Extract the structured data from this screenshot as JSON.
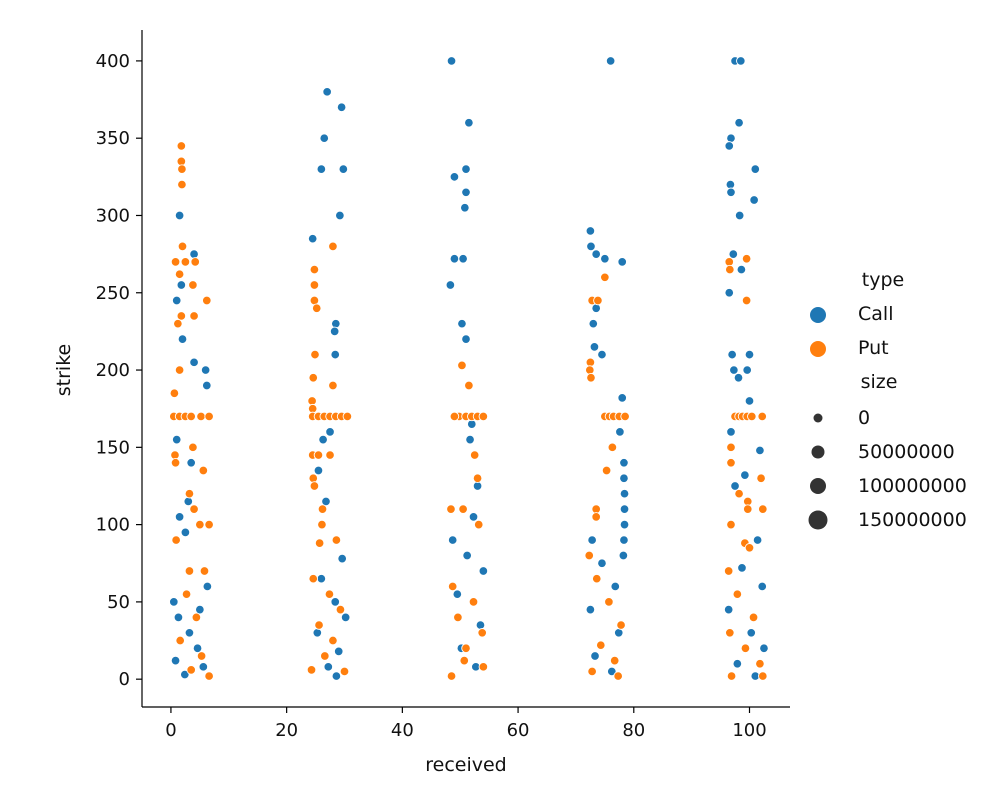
{
  "chart_data": {
    "type": "scatter",
    "xlabel": "received",
    "ylabel": "strike",
    "xlim": [
      -5,
      107
    ],
    "ylim": [
      -18,
      420
    ],
    "x_ticks": [
      0,
      20,
      40,
      60,
      80,
      100
    ],
    "y_ticks": [
      0,
      50,
      100,
      150,
      200,
      250,
      300,
      350,
      400
    ],
    "grid": false,
    "legend_position": "right",
    "legend": {
      "hue_title": "type",
      "hue_items": [
        {
          "label": "Call",
          "color": "#1f77b4"
        },
        {
          "label": "Put",
          "color": "#ff7f0e"
        }
      ],
      "size_title": "size",
      "size_items": [
        {
          "label": "0",
          "value": 0
        },
        {
          "label": "50000000",
          "value": 50000000
        },
        {
          "label": "100000000",
          "value": 100000000
        },
        {
          "label": "150000000",
          "value": 150000000
        }
      ]
    },
    "series": [
      {
        "name": "Call",
        "color": "#1f77b4",
        "points": [
          {
            "x": 1.5,
            "y": 300
          },
          {
            "x": 4,
            "y": 275
          },
          {
            "x": 1.8,
            "y": 255
          },
          {
            "x": 1,
            "y": 245
          },
          {
            "x": 2,
            "y": 220
          },
          {
            "x": 4,
            "y": 205
          },
          {
            "x": 6,
            "y": 200
          },
          {
            "x": 6.2,
            "y": 190
          },
          {
            "x": 1,
            "y": 155
          },
          {
            "x": 3.5,
            "y": 140
          },
          {
            "x": 3,
            "y": 115
          },
          {
            "x": 1.5,
            "y": 105
          },
          {
            "x": 2.5,
            "y": 95
          },
          {
            "x": 0.5,
            "y": 50
          },
          {
            "x": 1.3,
            "y": 40
          },
          {
            "x": 3.2,
            "y": 30
          },
          {
            "x": 4.6,
            "y": 20
          },
          {
            "x": 0.8,
            "y": 12
          },
          {
            "x": 5.6,
            "y": 8
          },
          {
            "x": 2.4,
            "y": 3
          },
          {
            "x": 6.3,
            "y": 60
          },
          {
            "x": 5,
            "y": 45
          },
          {
            "x": 27,
            "y": 380
          },
          {
            "x": 29.5,
            "y": 370
          },
          {
            "x": 26.5,
            "y": 350
          },
          {
            "x": 26,
            "y": 330
          },
          {
            "x": 29.8,
            "y": 330
          },
          {
            "x": 29.2,
            "y": 300
          },
          {
            "x": 24.5,
            "y": 285
          },
          {
            "x": 28.5,
            "y": 230
          },
          {
            "x": 28.3,
            "y": 225
          },
          {
            "x": 28.4,
            "y": 210
          },
          {
            "x": 27.5,
            "y": 160
          },
          {
            "x": 26.3,
            "y": 155
          },
          {
            "x": 25.5,
            "y": 135
          },
          {
            "x": 26.8,
            "y": 115
          },
          {
            "x": 29.6,
            "y": 78
          },
          {
            "x": 26,
            "y": 65
          },
          {
            "x": 28.4,
            "y": 50
          },
          {
            "x": 30.2,
            "y": 40
          },
          {
            "x": 25.3,
            "y": 30
          },
          {
            "x": 29,
            "y": 18
          },
          {
            "x": 27.2,
            "y": 8
          },
          {
            "x": 28.6,
            "y": 2
          },
          {
            "x": 48.5,
            "y": 400
          },
          {
            "x": 51.5,
            "y": 360
          },
          {
            "x": 49,
            "y": 325
          },
          {
            "x": 51,
            "y": 330
          },
          {
            "x": 51,
            "y": 315
          },
          {
            "x": 50.8,
            "y": 305
          },
          {
            "x": 49,
            "y": 272
          },
          {
            "x": 50.5,
            "y": 272
          },
          {
            "x": 48.3,
            "y": 255
          },
          {
            "x": 50.3,
            "y": 230
          },
          {
            "x": 51,
            "y": 220
          },
          {
            "x": 52,
            "y": 165
          },
          {
            "x": 51.7,
            "y": 155
          },
          {
            "x": 53,
            "y": 125
          },
          {
            "x": 52.3,
            "y": 105
          },
          {
            "x": 48.7,
            "y": 90
          },
          {
            "x": 51.2,
            "y": 80
          },
          {
            "x": 54,
            "y": 70
          },
          {
            "x": 49.5,
            "y": 55
          },
          {
            "x": 53.5,
            "y": 35
          },
          {
            "x": 50.2,
            "y": 20
          },
          {
            "x": 52.7,
            "y": 8
          },
          {
            "x": 76,
            "y": 400
          },
          {
            "x": 72.5,
            "y": 290
          },
          {
            "x": 72.6,
            "y": 280
          },
          {
            "x": 73.5,
            "y": 275
          },
          {
            "x": 75,
            "y": 272
          },
          {
            "x": 78,
            "y": 270
          },
          {
            "x": 73.5,
            "y": 240
          },
          {
            "x": 73,
            "y": 230
          },
          {
            "x": 73.2,
            "y": 215
          },
          {
            "x": 74.5,
            "y": 210
          },
          {
            "x": 78,
            "y": 182
          },
          {
            "x": 78.2,
            "y": 170
          },
          {
            "x": 77.6,
            "y": 160
          },
          {
            "x": 78.3,
            "y": 140
          },
          {
            "x": 78.3,
            "y": 130
          },
          {
            "x": 78.4,
            "y": 120
          },
          {
            "x": 78.4,
            "y": 110
          },
          {
            "x": 78.4,
            "y": 100
          },
          {
            "x": 78.3,
            "y": 90
          },
          {
            "x": 78.2,
            "y": 80
          },
          {
            "x": 72.8,
            "y": 90
          },
          {
            "x": 74.5,
            "y": 75
          },
          {
            "x": 76.8,
            "y": 60
          },
          {
            "x": 72.5,
            "y": 45
          },
          {
            "x": 77.4,
            "y": 30
          },
          {
            "x": 73.3,
            "y": 15
          },
          {
            "x": 76.2,
            "y": 5
          },
          {
            "x": 97.5,
            "y": 400
          },
          {
            "x": 98.5,
            "y": 400
          },
          {
            "x": 98.2,
            "y": 360
          },
          {
            "x": 96.8,
            "y": 350
          },
          {
            "x": 96.5,
            "y": 345
          },
          {
            "x": 101,
            "y": 330
          },
          {
            "x": 96.7,
            "y": 320
          },
          {
            "x": 96.8,
            "y": 315
          },
          {
            "x": 98.3,
            "y": 300
          },
          {
            "x": 100.8,
            "y": 310
          },
          {
            "x": 97.2,
            "y": 275
          },
          {
            "x": 98.6,
            "y": 265
          },
          {
            "x": 96.5,
            "y": 250
          },
          {
            "x": 97,
            "y": 210
          },
          {
            "x": 100,
            "y": 210
          },
          {
            "x": 97.3,
            "y": 200
          },
          {
            "x": 99.6,
            "y": 200
          },
          {
            "x": 98.1,
            "y": 195
          },
          {
            "x": 100,
            "y": 180
          },
          {
            "x": 96.8,
            "y": 160
          },
          {
            "x": 101.8,
            "y": 148
          },
          {
            "x": 99.2,
            "y": 132
          },
          {
            "x": 97.5,
            "y": 125
          },
          {
            "x": 101.4,
            "y": 90
          },
          {
            "x": 98.7,
            "y": 72
          },
          {
            "x": 102.2,
            "y": 60
          },
          {
            "x": 96.4,
            "y": 45
          },
          {
            "x": 100.3,
            "y": 30
          },
          {
            "x": 102.5,
            "y": 20
          },
          {
            "x": 97.9,
            "y": 10
          },
          {
            "x": 101,
            "y": 2
          }
        ]
      },
      {
        "name": "Put",
        "color": "#ff7f0e",
        "points": [
          {
            "x": 1.8,
            "y": 345
          },
          {
            "x": 1.8,
            "y": 335
          },
          {
            "x": 1.9,
            "y": 330
          },
          {
            "x": 1.9,
            "y": 320
          },
          {
            "x": 2,
            "y": 280
          },
          {
            "x": 0.8,
            "y": 270
          },
          {
            "x": 2.5,
            "y": 270
          },
          {
            "x": 4.2,
            "y": 270
          },
          {
            "x": 1.5,
            "y": 262
          },
          {
            "x": 6.2,
            "y": 245
          },
          {
            "x": 3.8,
            "y": 255
          },
          {
            "x": 1.8,
            "y": 235
          },
          {
            "x": 4,
            "y": 235
          },
          {
            "x": 1.2,
            "y": 230
          },
          {
            "x": 1.5,
            "y": 200
          },
          {
            "x": 0.6,
            "y": 185
          },
          {
            "x": 0.5,
            "y": 170
          },
          {
            "x": 1.5,
            "y": 170
          },
          {
            "x": 2.5,
            "y": 170
          },
          {
            "x": 3.5,
            "y": 170
          },
          {
            "x": 5.2,
            "y": 170
          },
          {
            "x": 6.6,
            "y": 170
          },
          {
            "x": 3.8,
            "y": 150
          },
          {
            "x": 0.7,
            "y": 145
          },
          {
            "x": 0.8,
            "y": 140
          },
          {
            "x": 3.2,
            "y": 120
          },
          {
            "x": 4,
            "y": 110
          },
          {
            "x": 5.6,
            "y": 135
          },
          {
            "x": 6.6,
            "y": 100
          },
          {
            "x": 5,
            "y": 100
          },
          {
            "x": 0.9,
            "y": 90
          },
          {
            "x": 3.2,
            "y": 70
          },
          {
            "x": 5.8,
            "y": 70
          },
          {
            "x": 2.7,
            "y": 55
          },
          {
            "x": 4.4,
            "y": 40
          },
          {
            "x": 1.6,
            "y": 25
          },
          {
            "x": 5.3,
            "y": 15
          },
          {
            "x": 3.5,
            "y": 6
          },
          {
            "x": 6.6,
            "y": 2
          },
          {
            "x": 28,
            "y": 280
          },
          {
            "x": 24.8,
            "y": 265
          },
          {
            "x": 24.8,
            "y": 255
          },
          {
            "x": 24.8,
            "y": 245
          },
          {
            "x": 25.2,
            "y": 240
          },
          {
            "x": 24.9,
            "y": 210
          },
          {
            "x": 24.6,
            "y": 195
          },
          {
            "x": 28,
            "y": 190
          },
          {
            "x": 24.4,
            "y": 180
          },
          {
            "x": 24.5,
            "y": 175
          },
          {
            "x": 24.5,
            "y": 170
          },
          {
            "x": 25.5,
            "y": 170
          },
          {
            "x": 26.5,
            "y": 170
          },
          {
            "x": 27.5,
            "y": 170
          },
          {
            "x": 28.5,
            "y": 170
          },
          {
            "x": 29.5,
            "y": 170
          },
          {
            "x": 30.5,
            "y": 170
          },
          {
            "x": 24.5,
            "y": 145
          },
          {
            "x": 25.5,
            "y": 145
          },
          {
            "x": 27.5,
            "y": 145
          },
          {
            "x": 24.6,
            "y": 130
          },
          {
            "x": 24.8,
            "y": 125
          },
          {
            "x": 26.2,
            "y": 110
          },
          {
            "x": 26.1,
            "y": 100
          },
          {
            "x": 28.6,
            "y": 90
          },
          {
            "x": 25.7,
            "y": 88
          },
          {
            "x": 24.6,
            "y": 65
          },
          {
            "x": 27.4,
            "y": 55
          },
          {
            "x": 29.3,
            "y": 45
          },
          {
            "x": 25.6,
            "y": 35
          },
          {
            "x": 28,
            "y": 25
          },
          {
            "x": 26.6,
            "y": 15
          },
          {
            "x": 24.3,
            "y": 6
          },
          {
            "x": 30,
            "y": 5
          },
          {
            "x": 50.3,
            "y": 203
          },
          {
            "x": 51.5,
            "y": 190
          },
          {
            "x": 49.8,
            "y": 170
          },
          {
            "x": 51,
            "y": 170
          },
          {
            "x": 52,
            "y": 170
          },
          {
            "x": 53,
            "y": 170
          },
          {
            "x": 54,
            "y": 170
          },
          {
            "x": 49,
            "y": 170
          },
          {
            "x": 52.5,
            "y": 145
          },
          {
            "x": 53,
            "y": 130
          },
          {
            "x": 48.4,
            "y": 110
          },
          {
            "x": 50.5,
            "y": 110
          },
          {
            "x": 53.2,
            "y": 100
          },
          {
            "x": 48.7,
            "y": 60
          },
          {
            "x": 52.3,
            "y": 50
          },
          {
            "x": 49.6,
            "y": 40
          },
          {
            "x": 53.8,
            "y": 30
          },
          {
            "x": 51,
            "y": 20
          },
          {
            "x": 54,
            "y": 8
          },
          {
            "x": 48.5,
            "y": 2
          },
          {
            "x": 50.7,
            "y": 12
          },
          {
            "x": 75,
            "y": 260
          },
          {
            "x": 72.8,
            "y": 245
          },
          {
            "x": 73.8,
            "y": 245
          },
          {
            "x": 72.5,
            "y": 205
          },
          {
            "x": 72.4,
            "y": 200
          },
          {
            "x": 72.6,
            "y": 195
          },
          {
            "x": 75,
            "y": 170
          },
          {
            "x": 75.8,
            "y": 170
          },
          {
            "x": 76.5,
            "y": 170
          },
          {
            "x": 77.5,
            "y": 170
          },
          {
            "x": 78.5,
            "y": 170
          },
          {
            "x": 76.3,
            "y": 150
          },
          {
            "x": 75.3,
            "y": 135
          },
          {
            "x": 73.5,
            "y": 110
          },
          {
            "x": 73.5,
            "y": 105
          },
          {
            "x": 72.3,
            "y": 80
          },
          {
            "x": 73.6,
            "y": 65
          },
          {
            "x": 75.7,
            "y": 50
          },
          {
            "x": 77.8,
            "y": 35
          },
          {
            "x": 74.3,
            "y": 22
          },
          {
            "x": 76.7,
            "y": 12
          },
          {
            "x": 72.8,
            "y": 5
          },
          {
            "x": 77.3,
            "y": 2
          },
          {
            "x": 96.5,
            "y": 270
          },
          {
            "x": 99.5,
            "y": 272
          },
          {
            "x": 96.6,
            "y": 265
          },
          {
            "x": 99.5,
            "y": 245
          },
          {
            "x": 97.5,
            "y": 170
          },
          {
            "x": 98.2,
            "y": 170
          },
          {
            "x": 98.8,
            "y": 170
          },
          {
            "x": 99.6,
            "y": 170
          },
          {
            "x": 100.4,
            "y": 170
          },
          {
            "x": 102.2,
            "y": 170
          },
          {
            "x": 96.8,
            "y": 150
          },
          {
            "x": 96.8,
            "y": 140
          },
          {
            "x": 102,
            "y": 130
          },
          {
            "x": 98.2,
            "y": 120
          },
          {
            "x": 99.7,
            "y": 115
          },
          {
            "x": 99.7,
            "y": 110
          },
          {
            "x": 102.3,
            "y": 110
          },
          {
            "x": 96.8,
            "y": 100
          },
          {
            "x": 99.2,
            "y": 88
          },
          {
            "x": 100,
            "y": 85
          },
          {
            "x": 96.4,
            "y": 70
          },
          {
            "x": 97.9,
            "y": 55
          },
          {
            "x": 100.7,
            "y": 40
          },
          {
            "x": 96.6,
            "y": 30
          },
          {
            "x": 99.3,
            "y": 20
          },
          {
            "x": 101.8,
            "y": 10
          },
          {
            "x": 96.9,
            "y": 2
          },
          {
            "x": 102.3,
            "y": 2
          }
        ]
      }
    ]
  }
}
